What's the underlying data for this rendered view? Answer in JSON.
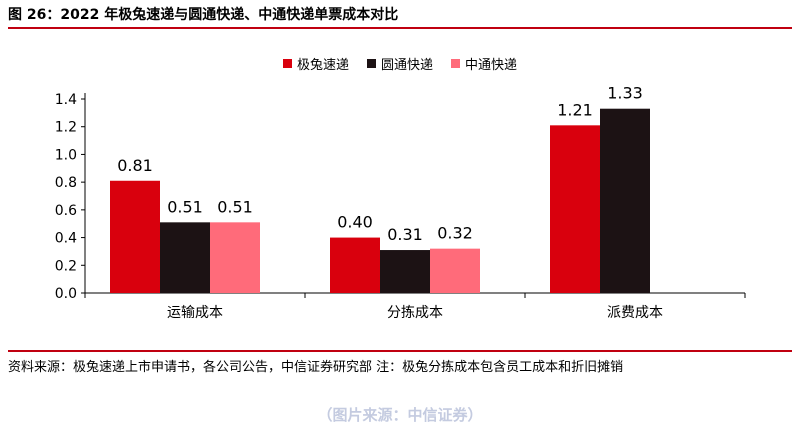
{
  "figure_title": "图 26：2022 年极兔速递与圆通快递、中通快递单票成本对比",
  "note": "资料来源：极兔速递上市申请书，各公司公告，中信证券研究部  注：极兔分拣成本包含员工成本和折旧摊销",
  "source_footer": "（图片来源：中信证券）",
  "colors": {
    "rule": "#c00010"
  },
  "chart_data": {
    "type": "bar",
    "categories": [
      "运输成本",
      "分拣成本",
      "派费成本"
    ],
    "series": [
      {
        "name": "极兔速递",
        "color": "#d9000d",
        "values": [
          0.81,
          0.4,
          1.21
        ],
        "labels": [
          "0.81",
          "0.40",
          "1.21"
        ]
      },
      {
        "name": "圆通快递",
        "color": "#1c1214",
        "values": [
          0.51,
          0.31,
          1.33
        ],
        "labels": [
          "0.51",
          "0.31",
          "1.33"
        ]
      },
      {
        "name": "中通快递",
        "color": "#ff6b7a",
        "values": [
          0.51,
          0.32,
          null
        ],
        "labels": [
          "0.51",
          "0.32",
          ""
        ]
      }
    ],
    "yticks": [
      "0.0",
      "0.2",
      "0.4",
      "0.6",
      "0.8",
      "1.0",
      "1.2",
      "1.4"
    ],
    "ylim": [
      0,
      1.4
    ],
    "title": "",
    "xlabel": "",
    "ylabel": "",
    "legend_position": "top",
    "grid": false
  }
}
